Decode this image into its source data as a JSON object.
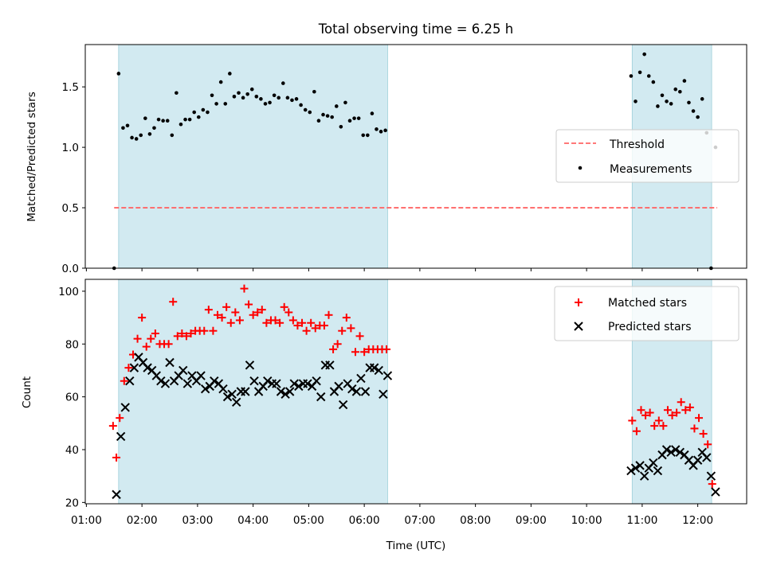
{
  "chart_data": {
    "title": "Total observing time = 6.25 h",
    "xlabel": "Time (UTC)",
    "x_ticks": [
      "01:00",
      "02:00",
      "03:00",
      "04:00",
      "05:00",
      "06:00",
      "07:00",
      "08:00",
      "09:00",
      "10:00",
      "11:00",
      "12:00"
    ],
    "x_range": [
      0.98,
      12.88
    ],
    "shaded_intervals": [
      [
        1.58,
        6.42
      ],
      [
        10.82,
        12.25
      ]
    ],
    "shade_color": "#add8e6",
    "top": {
      "type": "scatter",
      "ylabel": "Matched/Predicted stars",
      "ylim": [
        0,
        1.85
      ],
      "y_ticks": [
        "0.0",
        "0.5",
        "1.0",
        "1.5"
      ],
      "legend": {
        "position": "center-right",
        "entries": [
          "Threshold",
          "Measurements"
        ]
      },
      "threshold": {
        "name": "Threshold",
        "value": 0.5,
        "x_start": 1.5,
        "x_end": 12.35,
        "color": "#ff6666"
      },
      "measurements": {
        "name": "Measurements",
        "color": "#000000",
        "x": [
          1.5,
          1.58,
          1.66,
          1.74,
          1.82,
          1.9,
          1.98,
          2.06,
          2.14,
          2.22,
          2.3,
          2.38,
          2.46,
          2.54,
          2.62,
          2.7,
          2.78,
          2.86,
          2.94,
          3.02,
          3.1,
          3.18,
          3.26,
          3.34,
          3.42,
          3.5,
          3.58,
          3.66,
          3.74,
          3.82,
          3.9,
          3.98,
          4.06,
          4.14,
          4.22,
          4.3,
          4.38,
          4.46,
          4.54,
          4.62,
          4.7,
          4.78,
          4.86,
          4.94,
          5.02,
          5.1,
          5.18,
          5.26,
          5.34,
          5.42,
          5.5,
          5.58,
          5.66,
          5.74,
          5.82,
          5.9,
          5.98,
          6.06,
          6.14,
          6.22,
          6.3,
          6.38,
          10.8,
          10.88,
          10.96,
          11.04,
          11.12,
          11.2,
          11.28,
          11.36,
          11.44,
          11.52,
          11.6,
          11.68,
          11.76,
          11.84,
          11.92,
          12.0,
          12.08,
          12.16,
          12.24,
          12.32
        ],
        "y": [
          0.0,
          1.61,
          1.16,
          1.18,
          1.08,
          1.07,
          1.1,
          1.24,
          1.11,
          1.16,
          1.23,
          1.22,
          1.22,
          1.1,
          1.45,
          1.19,
          1.23,
          1.23,
          1.29,
          1.25,
          1.31,
          1.29,
          1.43,
          1.36,
          1.54,
          1.36,
          1.61,
          1.42,
          1.45,
          1.41,
          1.44,
          1.48,
          1.42,
          1.4,
          1.36,
          1.37,
          1.43,
          1.41,
          1.53,
          1.41,
          1.39,
          1.4,
          1.35,
          1.31,
          1.29,
          1.46,
          1.22,
          1.27,
          1.26,
          1.25,
          1.34,
          1.17,
          1.37,
          1.22,
          1.24,
          1.24,
          1.1,
          1.1,
          1.28,
          1.15,
          1.13,
          1.14,
          1.59,
          1.38,
          1.62,
          1.77,
          1.59,
          1.54,
          1.34,
          1.43,
          1.38,
          1.36,
          1.48,
          1.46,
          1.55,
          1.37,
          1.3,
          1.25,
          1.4,
          1.12,
          0.0,
          1.0
        ]
      }
    },
    "bottom": {
      "type": "scatter",
      "ylabel": "Count",
      "ylim": [
        19.5,
        104.5
      ],
      "y_ticks": [
        "20",
        "40",
        "60",
        "80",
        "100"
      ],
      "legend": {
        "position": "top-right",
        "entries": [
          "Matched stars",
          "Predicted stars"
        ]
      },
      "matched": {
        "name": "Matched stars",
        "color": "#ff0000",
        "x": [
          1.48,
          1.54,
          1.6,
          1.68,
          1.76,
          1.84,
          1.92,
          2.0,
          2.08,
          2.16,
          2.24,
          2.32,
          2.4,
          2.48,
          2.56,
          2.64,
          2.72,
          2.8,
          2.88,
          2.96,
          3.04,
          3.12,
          3.2,
          3.28,
          3.36,
          3.44,
          3.52,
          3.6,
          3.68,
          3.76,
          3.84,
          3.92,
          4.0,
          4.08,
          4.16,
          4.24,
          4.32,
          4.4,
          4.48,
          4.56,
          4.64,
          4.72,
          4.8,
          4.88,
          4.96,
          5.04,
          5.12,
          5.2,
          5.28,
          5.36,
          5.44,
          5.52,
          5.6,
          5.68,
          5.76,
          5.84,
          5.92,
          6.0,
          6.08,
          6.16,
          6.24,
          6.32,
          6.4,
          10.82,
          10.9,
          10.98,
          11.06,
          11.14,
          11.22,
          11.3,
          11.38,
          11.46,
          11.54,
          11.62,
          11.7,
          11.78,
          11.86,
          11.94,
          12.02,
          12.1,
          12.18,
          12.26
        ],
        "y": [
          49,
          37,
          52,
          66,
          71,
          76,
          82,
          90,
          79,
          82,
          84,
          80,
          80,
          80,
          96,
          83,
          84,
          83,
          84,
          85,
          85,
          85,
          93,
          85,
          91,
          90,
          94,
          88,
          92,
          89,
          101,
          95,
          91,
          92,
          93,
          88,
          89,
          89,
          88,
          94,
          92,
          89,
          87,
          88,
          85,
          88,
          86,
          87,
          87,
          91,
          78,
          80,
          85,
          90,
          86,
          77,
          83,
          77,
          78,
          78,
          78,
          78,
          78,
          51,
          47,
          55,
          53,
          54,
          49,
          51,
          49,
          55,
          53,
          54,
          58,
          55,
          56,
          48,
          52,
          46,
          42,
          27
        ]
      },
      "predicted": {
        "name": "Predicted stars",
        "color": "#000000",
        "x": [
          1.54,
          1.62,
          1.7,
          1.78,
          1.86,
          1.94,
          2.02,
          2.1,
          2.18,
          2.26,
          2.34,
          2.42,
          2.5,
          2.58,
          2.66,
          2.74,
          2.82,
          2.9,
          2.98,
          3.06,
          3.14,
          3.22,
          3.3,
          3.38,
          3.46,
          3.54,
          3.62,
          3.7,
          3.78,
          3.86,
          3.94,
          4.02,
          4.1,
          4.18,
          4.26,
          4.34,
          4.42,
          4.5,
          4.58,
          4.66,
          4.74,
          4.82,
          4.9,
          4.98,
          5.06,
          5.14,
          5.22,
          5.3,
          5.38,
          5.46,
          5.54,
          5.62,
          5.7,
          5.78,
          5.86,
          5.94,
          6.02,
          6.1,
          6.18,
          6.26,
          6.34,
          6.42,
          10.8,
          10.88,
          10.96,
          11.04,
          11.12,
          11.2,
          11.28,
          11.36,
          11.44,
          11.52,
          11.6,
          11.68,
          11.76,
          11.84,
          11.92,
          12.0,
          12.08,
          12.16,
          12.24,
          12.32
        ],
        "y": [
          23,
          45,
          56,
          66,
          71,
          75,
          73,
          71,
          70,
          68,
          66,
          65,
          73,
          66,
          68,
          70,
          65,
          68,
          66,
          68,
          63,
          64,
          66,
          65,
          63,
          60,
          61,
          58,
          62,
          62,
          72,
          66,
          62,
          64,
          66,
          65,
          65,
          62,
          61,
          62,
          65,
          64,
          65,
          65,
          64,
          66,
          60,
          72,
          72,
          62,
          64,
          57,
          65,
          63,
          62,
          67,
          62,
          71,
          71,
          70,
          61,
          68,
          32,
          33,
          34,
          30,
          33,
          35,
          32,
          38,
          40,
          39,
          40,
          39,
          38,
          36,
          34,
          36,
          39,
          37,
          30,
          24
        ]
      }
    }
  }
}
